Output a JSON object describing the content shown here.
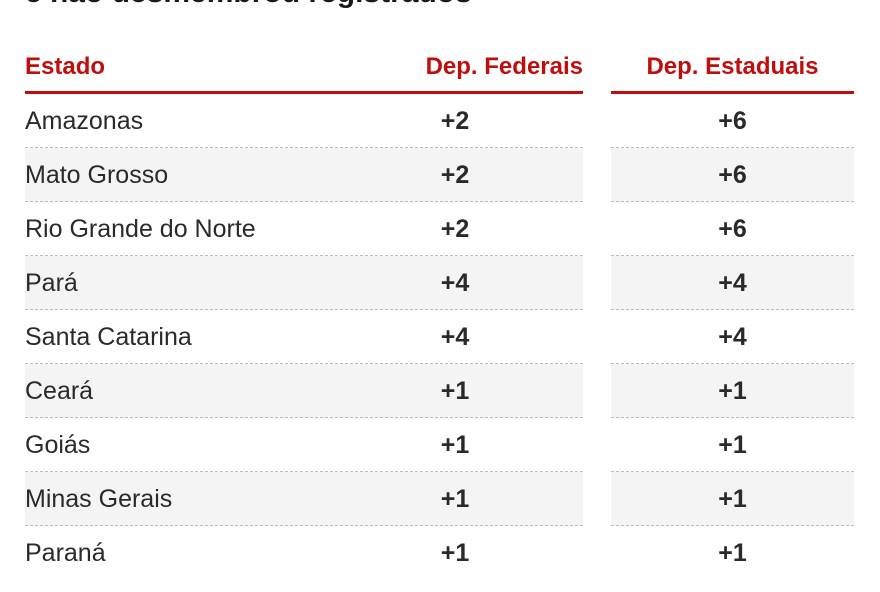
{
  "title_partial": "e não desmembrou registrados",
  "headers": {
    "estado": "Estado",
    "dep_federais": "Dep. Federais",
    "dep_estaduais": "Dep. Estaduais"
  },
  "rows": [
    {
      "estado": "Amazonas",
      "dep_federais": "+2",
      "dep_estaduais": "+6"
    },
    {
      "estado": "Mato Grosso",
      "dep_federais": "+2",
      "dep_estaduais": "+6"
    },
    {
      "estado": "Rio Grande do Norte",
      "dep_federais": "+2",
      "dep_estaduais": "+6"
    },
    {
      "estado": "Pará",
      "dep_federais": "+4",
      "dep_estaduais": "+4"
    },
    {
      "estado": "Santa Catarina",
      "dep_federais": "+4",
      "dep_estaduais": "+4"
    },
    {
      "estado": "Ceará",
      "dep_federais": "+1",
      "dep_estaduais": "+1"
    },
    {
      "estado": "Goiás",
      "dep_federais": "+1",
      "dep_estaduais": "+1"
    },
    {
      "estado": "Minas Gerais",
      "dep_federais": "+1",
      "dep_estaduais": "+1"
    },
    {
      "estado": "Paraná",
      "dep_federais": "+1",
      "dep_estaduais": "+1"
    }
  ],
  "colors": {
    "accent": "#c00d0d",
    "text": "#2a2a2a",
    "row_alt": "#f4f4f4"
  }
}
